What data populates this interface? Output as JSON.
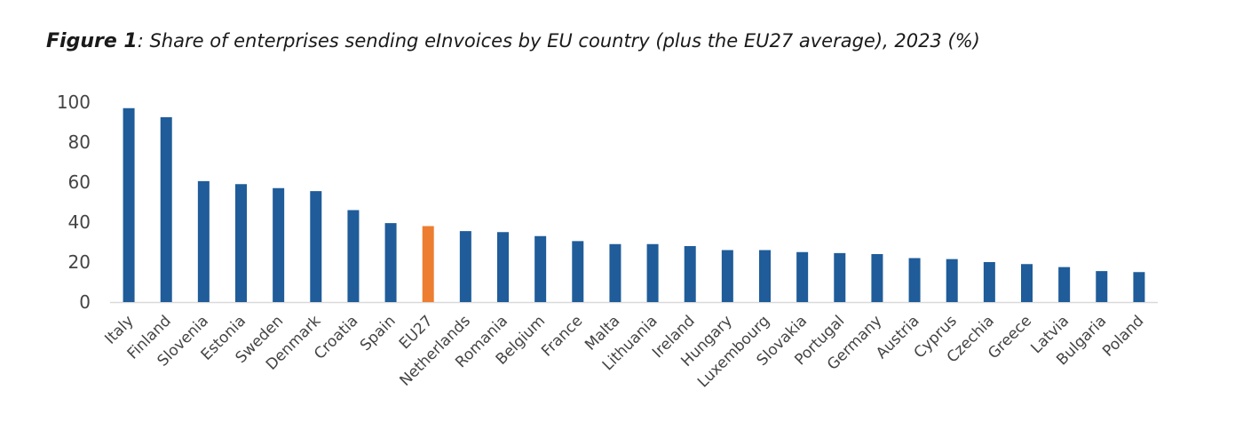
{
  "figure_label": "Figure 1",
  "caption_text": ": Share of enterprises sending eInvoices by EU country (plus the EU27 average), 2023 (%)",
  "chart_data": {
    "type": "bar",
    "categories": [
      "Italy",
      "Finland",
      "Slovenia",
      "Estonia",
      "Sweden",
      "Denmark",
      "Croatia",
      "Spain",
      "EU27",
      "Netherlands",
      "Romania",
      "Belgium",
      "France",
      "Malta",
      "Lithuania",
      "Ireland",
      "Hungary",
      "Luxembourg",
      "Slovakia",
      "Portugal",
      "Germany",
      "Austria",
      "Cyprus",
      "Czechia",
      "Greece",
      "Latvia",
      "Bulgaria",
      "Poland"
    ],
    "values": [
      97,
      92.5,
      60.5,
      59,
      57,
      55.5,
      46,
      39.5,
      38,
      35.5,
      35,
      33,
      30.5,
      29,
      29,
      28,
      26,
      26,
      25,
      24.5,
      24,
      22,
      21.5,
      20,
      19,
      17.5,
      15.5,
      15
    ],
    "ylim": [
      0,
      100
    ],
    "yticks": [
      "0",
      "20",
      "40",
      "60",
      "80",
      "100"
    ],
    "bar_color": "#1F5C99",
    "highlight_color": "#ED7D31",
    "highlight_category": "EU27",
    "axis_color": "#d9d9d9",
    "grid": false,
    "legend": "none"
  }
}
